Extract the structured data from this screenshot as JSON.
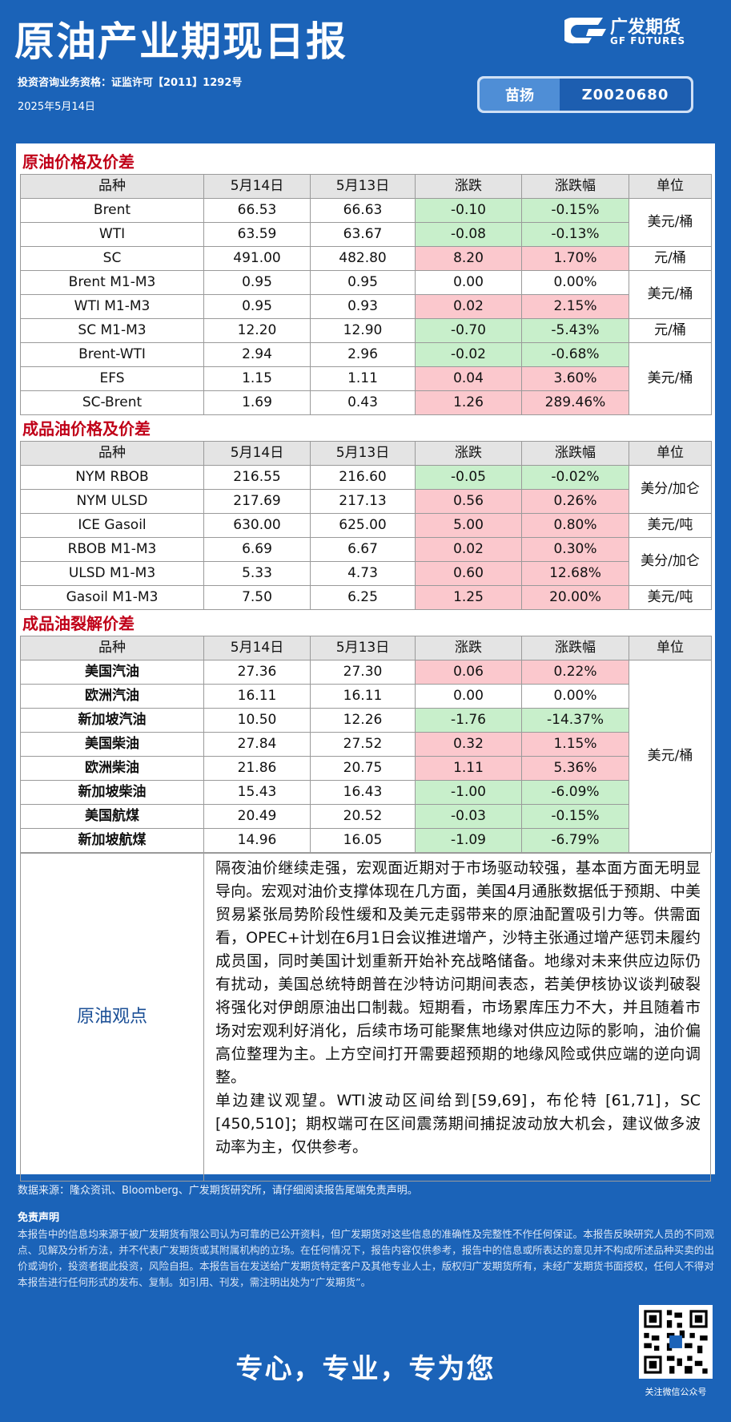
{
  "header": {
    "title": "原油产业期现日报",
    "license": "投资咨询业务资格：证监许可【2011】1292号",
    "date": "2025年5月14日",
    "logo_cn": "广发期货",
    "logo_en": "GF FUTURES",
    "analyst": "苗扬",
    "analyst_id": "Z0020680"
  },
  "sections": [
    {
      "title": "原油价格及价差",
      "columns": [
        "品种",
        "5月14日",
        "5月13日",
        "涨跌",
        "涨跌幅",
        "单位"
      ],
      "groups": [
        {
          "unit": "美元/桶",
          "rows": [
            [
              "Brent",
              "66.53",
              "66.63",
              "-0.10",
              "-0.15%"
            ],
            [
              "WTI",
              "63.59",
              "63.67",
              "-0.08",
              "-0.13%"
            ]
          ]
        },
        {
          "unit": "元/桶",
          "rows": [
            [
              "SC",
              "491.00",
              "482.80",
              "8.20",
              "1.70%"
            ]
          ]
        },
        {
          "unit": "美元/桶",
          "rows": [
            [
              "Brent M1-M3",
              "0.95",
              "0.95",
              "0.00",
              "0.00%"
            ],
            [
              "WTI M1-M3",
              "0.95",
              "0.93",
              "0.02",
              "2.15%"
            ]
          ]
        },
        {
          "unit": "元/桶",
          "rows": [
            [
              "SC M1-M3",
              "12.20",
              "12.90",
              "-0.70",
              "-5.43%"
            ]
          ]
        },
        {
          "unit": "美元/桶",
          "rows": [
            [
              "Brent-WTI",
              "2.94",
              "2.96",
              "-0.02",
              "-0.68%"
            ],
            [
              "EFS",
              "1.15",
              "1.11",
              "0.04",
              "3.60%"
            ],
            [
              "SC-Brent",
              "1.69",
              "0.43",
              "1.26",
              "289.46%"
            ]
          ]
        }
      ]
    },
    {
      "title": "成品油价格及价差",
      "columns": [
        "品种",
        "5月14日",
        "5月13日",
        "涨跌",
        "涨跌幅",
        "单位"
      ],
      "groups": [
        {
          "unit": "美分/加仑",
          "rows": [
            [
              "NYM RBOB",
              "216.55",
              "216.60",
              "-0.05",
              "-0.02%"
            ],
            [
              "NYM ULSD",
              "217.69",
              "217.13",
              "0.56",
              "0.26%"
            ]
          ]
        },
        {
          "unit": "美元/吨",
          "rows": [
            [
              "ICE Gasoil",
              "630.00",
              "625.00",
              "5.00",
              "0.80%"
            ]
          ]
        },
        {
          "unit": "美分/加仑",
          "rows": [
            [
              "RBOB M1-M3",
              "6.69",
              "6.67",
              "0.02",
              "0.30%"
            ],
            [
              "ULSD M1-M3",
              "5.33",
              "4.73",
              "0.60",
              "12.68%"
            ]
          ]
        },
        {
          "unit": "美元/吨",
          "rows": [
            [
              "Gasoil M1-M3",
              "7.50",
              "6.25",
              "1.25",
              "20.00%"
            ]
          ]
        }
      ]
    },
    {
      "title": "成品油裂解价差",
      "columns": [
        "品种",
        "5月14日",
        "5月13日",
        "涨跌",
        "涨跌幅",
        "单位"
      ],
      "groups": [
        {
          "unit": "美元/桶",
          "rows": [
            [
              "美国汽油",
              "27.36",
              "27.30",
              "0.06",
              "0.22%"
            ],
            [
              "欧洲汽油",
              "16.11",
              "16.11",
              "0.00",
              "0.00%"
            ],
            [
              "新加坡汽油",
              "10.50",
              "12.26",
              "-1.76",
              "-14.37%"
            ],
            [
              "美国柴油",
              "27.84",
              "27.52",
              "0.32",
              "1.15%"
            ],
            [
              "欧洲柴油",
              "21.86",
              "20.75",
              "1.11",
              "5.36%"
            ],
            [
              "新加坡柴油",
              "15.43",
              "16.43",
              "-1.00",
              "-6.09%"
            ],
            [
              "美国航煤",
              "20.49",
              "20.52",
              "-0.03",
              "-0.15%"
            ],
            [
              "新加坡航煤",
              "14.96",
              "16.05",
              "-1.09",
              "-6.79%"
            ]
          ]
        }
      ]
    }
  ],
  "view": {
    "label": "原油观点",
    "paragraphs": [
      "隔夜油价继续走强，宏观面近期对于市场驱动较强，基本面方面无明显导向。宏观对油价支撑体现在几方面，美国4月通胀数据低于预期、中美贸易紧张局势阶段性缓和及美元走弱带来的原油配置吸引力等。供需面看，OPEC+计划在6月1日会议推进增产，沙特主张通过增产惩罚未履约成员国，同时美国计划重新开始补充战略储备。地缘对未来供应边际仍有扰动，美国总统特朗普在沙特访问期间表态，若美伊核协议谈判破裂将强化对伊朗原油出口制裁。短期看，市场累库压力不大，并且随着市场对宏观利好消化，后续市场可能聚焦地缘对供应边际的影响，油价偏高位整理为主。上方空间打开需要超预期的地缘风险或供应端的逆向调整。",
      "单边建议观望。WTI波动区间给到[59,69]，布伦特 [61,71]，SC [450,510]；期权端可在区间震荡期间捕捉波动放大机会，建议做多波动率为主，仅供参考。"
    ]
  },
  "footer": {
    "source": "数据来源：隆众资讯、Bloomberg、广发期货研究所，请仔细阅读报告尾端免责声明。",
    "disclaimer_title": "免责声明",
    "disclaimer": "本报告中的信息均来源于被广发期货有限公司认为可靠的已公开资料，但广发期货对这些信息的准确性及完整性不作任何保证。本报告反映研究人员的不同观点、见解及分析方法，并不代表广发期货或其附属机构的立场。在任何情况下，报告内容仅供参考，报告中的信息或所表达的意见并不构成所述品种买卖的出价或询价，投资者据此投资，风险自担。本报告旨在发送给广发期货特定客户及其他专业人士，版权归广发期货所有，未经广发期货书面授权，任何人不得对本报告进行任何形式的发布、复制。如引用、刊发，需注明出处为“广发期货”。",
    "slogan": "专心，专业，专为您",
    "qr_caption": "关注微信公众号"
  }
}
